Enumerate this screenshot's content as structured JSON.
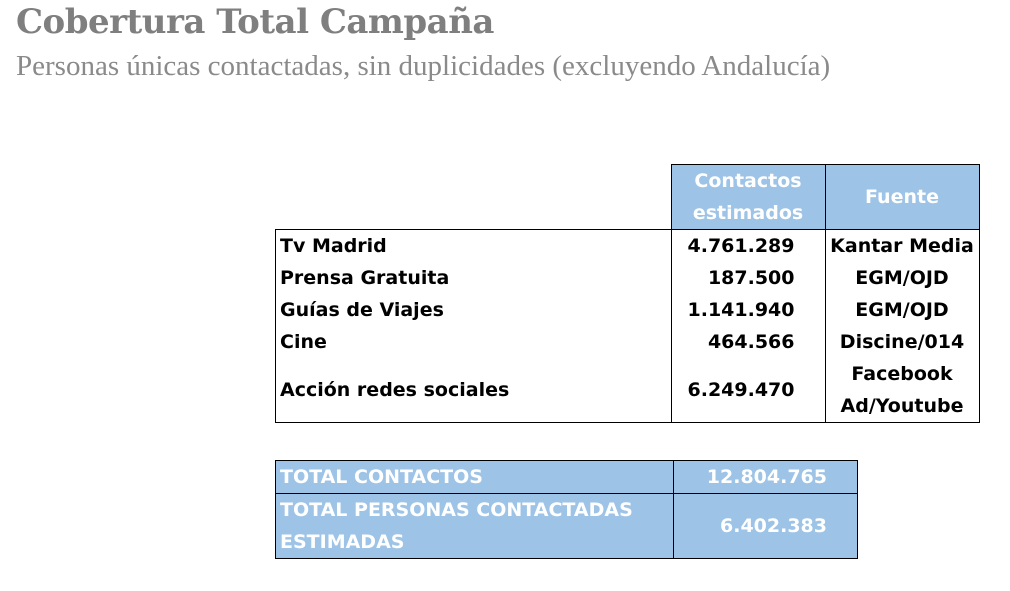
{
  "header": {
    "title": "Cobertura Total Campaña",
    "subtitle": "Personas únicas contactadas, sin duplicidades (excluyendo Andalucía)"
  },
  "table": {
    "columns": {
      "contacts_line1": "Contactos",
      "contacts_line2": "estimados",
      "source": "Fuente"
    },
    "rows": [
      {
        "medio": "Tv Madrid",
        "contactos": "4.761.289",
        "fuente_1": "Kantar Media",
        "fuente_2": ""
      },
      {
        "medio": "Prensa Gratuita",
        "contactos": "187.500",
        "fuente_1": "EGM/OJD",
        "fuente_2": ""
      },
      {
        "medio": "Guías de Viajes",
        "contactos": "1.141.940",
        "fuente_1": "EGM/OJD",
        "fuente_2": ""
      },
      {
        "medio": "Cine",
        "contactos": "464.566",
        "fuente_1": "Discine/014",
        "fuente_2": ""
      },
      {
        "medio": "Acción redes sociales",
        "contactos": "6.249.470",
        "fuente_1": "Facebook",
        "fuente_2": "Ad/Youtube"
      }
    ]
  },
  "totals": {
    "total_contactos_label": "TOTAL CONTACTOS",
    "total_contactos_value": "12.804.765",
    "total_personas_label_1": "TOTAL PERSONAS CONTACTADAS",
    "total_personas_label_2": "ESTIMADAS",
    "total_personas_value": "6.402.383"
  },
  "colors": {
    "header_fill": "#9dc3e6",
    "title_gray": "#7f7f7f"
  }
}
